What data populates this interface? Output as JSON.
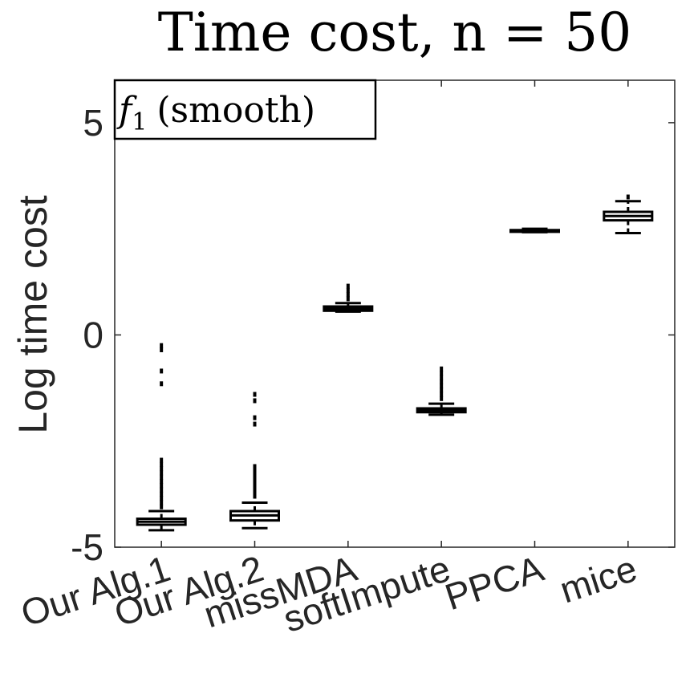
{
  "chart_data": {
    "type": "box",
    "title": "Time cost, n = 50",
    "ylabel": "Log time cost",
    "xlabel": "",
    "ylim": [
      -5,
      6
    ],
    "yticks": [
      "5",
      "0",
      "-5"
    ],
    "ytick_values": [
      5,
      0,
      -5
    ],
    "annotation": {
      "symbol": "f",
      "subscript": "1",
      "text": "(smooth)"
    },
    "grid": false,
    "color": "#000000",
    "categories": [
      "Our Alg.1",
      "Our Alg.2",
      "missMDA",
      "softImpute",
      "PPCA",
      "mice"
    ],
    "boxes": [
      {
        "whisker_low": -4.6,
        "q1": -4.47,
        "median": -4.4,
        "q3": -4.33,
        "whisker_high": -4.15,
        "outliers": [
          -0.25,
          -0.35,
          -0.85,
          -1.15,
          -2.95,
          -3.05,
          -3.15,
          -3.25,
          -3.35,
          -3.45,
          -3.55,
          -3.65,
          -3.75,
          -3.85,
          -3.95,
          -4.05
        ]
      },
      {
        "whisker_low": -4.55,
        "q1": -4.37,
        "median": -4.25,
        "q3": -4.15,
        "whisker_high": -3.95,
        "outliers": [
          -1.4,
          -1.55,
          -1.95,
          -2.1,
          -3.1,
          -3.2,
          -3.3,
          -3.4,
          -3.5,
          -3.6,
          -3.7,
          -3.8
        ]
      },
      {
        "whisker_low": 0.55,
        "q1": 0.57,
        "median": 0.62,
        "q3": 0.67,
        "whisker_high": 0.75,
        "outliers": [
          0.85,
          0.95,
          1.05,
          1.15
        ]
      },
      {
        "whisker_low": -1.88,
        "q1": -1.82,
        "median": -1.78,
        "q3": -1.73,
        "whisker_high": -1.62,
        "outliers": [
          -0.8,
          -0.9,
          -1.0,
          -1.1,
          -1.2,
          -1.3,
          -1.4,
          -1.5
        ]
      },
      {
        "whisker_low": 2.42,
        "q1": 2.43,
        "median": 2.45,
        "q3": 2.47,
        "whisker_high": 2.5,
        "outliers": []
      },
      {
        "whisker_low": 2.4,
        "q1": 2.7,
        "median": 2.8,
        "q3": 2.9,
        "whisker_high": 3.15,
        "outliers": [
          3.25
        ]
      }
    ]
  }
}
